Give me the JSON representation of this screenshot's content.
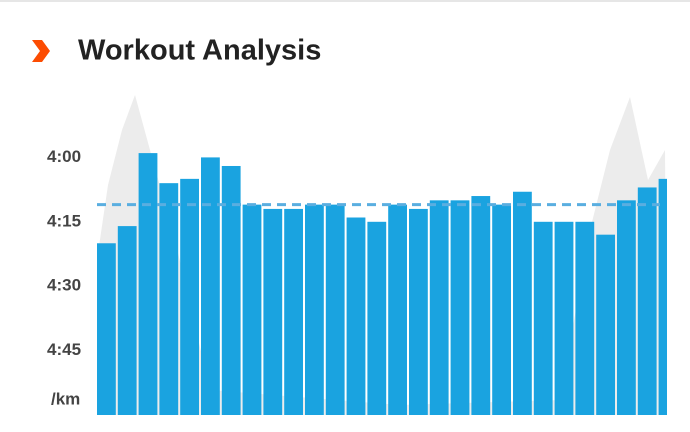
{
  "chart_data": {
    "type": "bar",
    "title": "Workout Analysis",
    "y_label": "/km",
    "values": [
      260,
      256,
      239,
      246,
      245,
      240,
      242,
      251,
      252,
      252,
      251,
      251,
      254,
      255,
      251,
      252,
      250,
      250,
      249,
      251,
      248,
      255,
      255,
      255,
      258,
      250,
      247,
      245
    ],
    "color": "#1aa3e0",
    "average": 251,
    "average_color": "#5aaee0",
    "ylim": [
      300,
      225
    ],
    "yticks": [
      {
        "value": 240,
        "label": "4:00"
      },
      {
        "value": 255,
        "label": "4:15"
      },
      {
        "value": 270,
        "label": "4:30"
      },
      {
        "value": 285,
        "label": "4:45"
      }
    ]
  }
}
